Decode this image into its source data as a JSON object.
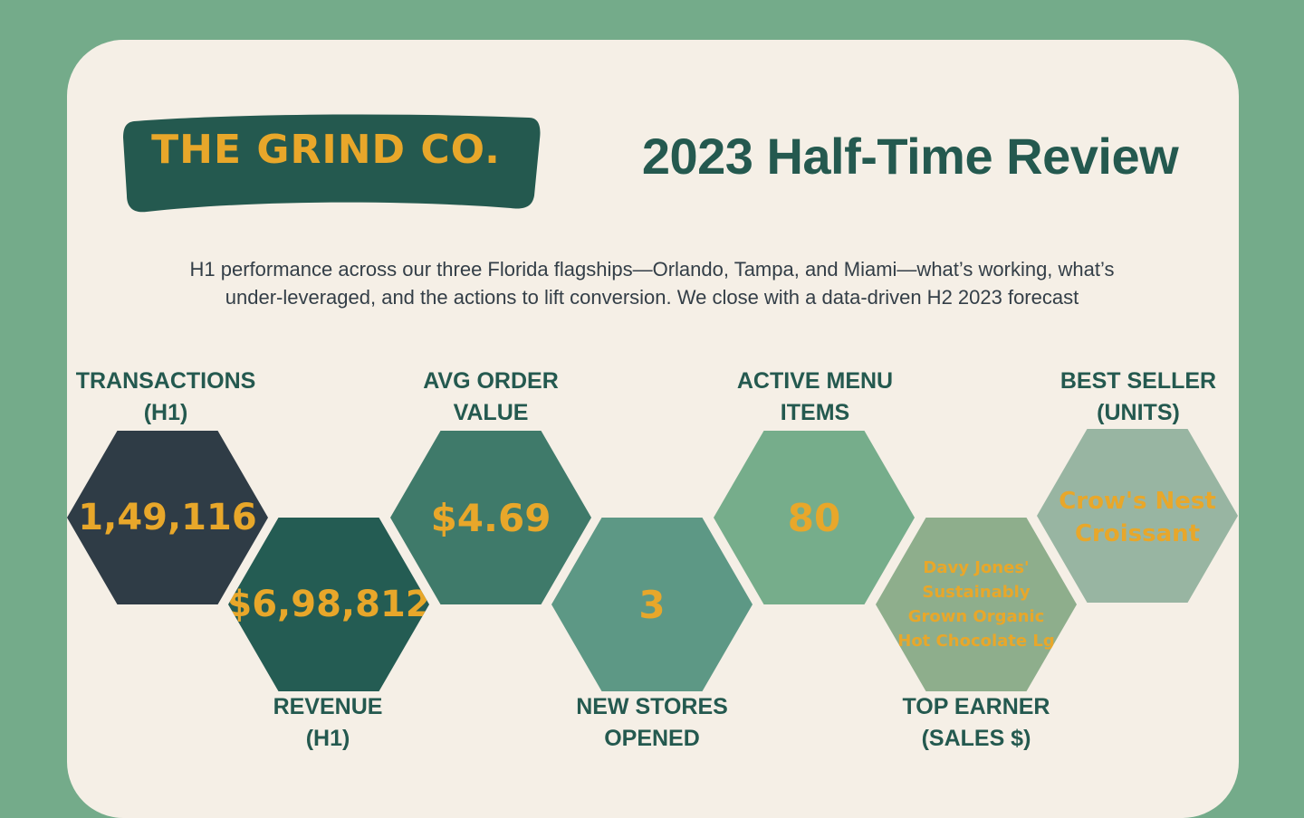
{
  "brand": {
    "logo_text": "THE GRIND CO.",
    "colors": {
      "background": "#74ab8a",
      "card": "#f5efe6",
      "logo_badge": "#24594f",
      "accent": "#e8a72a",
      "heading": "#24594f"
    }
  },
  "header": {
    "title": "2023 Half-Time Review"
  },
  "intro": {
    "line1": "H1 performance across our three Florida flagships—Orlando, Tampa, and Miami—what’s working, what’s",
    "line2": "under-leveraged, and the actions to lift conversion. We close with a data-driven H2 2023 forecast"
  },
  "kpis": [
    {
      "label_line1": "TRANSACTIONS",
      "label_line2": "(H1)",
      "value": "1,49,116",
      "color": "#2f3c46"
    },
    {
      "label_line1": "REVENUE",
      "label_line2": "(H1)",
      "value": "$6,98,812",
      "color": "#245c53"
    },
    {
      "label_line1": "AVG ORDER",
      "label_line2": "VALUE",
      "value": "$4.69",
      "color": "#3f7a6a"
    },
    {
      "label_line1": "NEW STORES",
      "label_line2": "OPENED",
      "value": "3",
      "color": "#5d9885"
    },
    {
      "label_line1": "ACTIVE MENU",
      "label_line2": "ITEMS",
      "value": "80",
      "color": "#76ad8b"
    },
    {
      "label_line1": "TOP EARNER",
      "label_line2": "(SALES $)",
      "value": "Davy Jones' Sustainably Grown Organic Hot Chocolate Lg",
      "color": "#8eae8c"
    },
    {
      "label_line1": "BEST SELLER",
      "label_line2": "(UNITS)",
      "value": "Crow's Nest Croissant",
      "color": "#98b5a2"
    }
  ]
}
